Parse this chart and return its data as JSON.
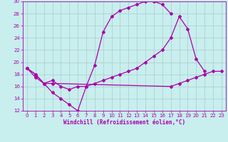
{
  "xlabel": "Windchill (Refroidissement éolien,°C)",
  "bg_color": "#c8eeee",
  "grid_color": "#aacccc",
  "line_color": "#aa00aa",
  "xlim": [
    -0.5,
    23.5
  ],
  "ylim": [
    12,
    30
  ],
  "xticks": [
    0,
    1,
    2,
    3,
    4,
    5,
    6,
    7,
    8,
    9,
    10,
    11,
    12,
    13,
    14,
    15,
    16,
    17,
    18,
    19,
    20,
    21,
    22,
    23
  ],
  "yticks": [
    12,
    14,
    16,
    18,
    20,
    22,
    24,
    26,
    28,
    30
  ],
  "line1_x": [
    0,
    1,
    2,
    3,
    4,
    5,
    6,
    7,
    8,
    9,
    10,
    11,
    12,
    13,
    14,
    15,
    16,
    17
  ],
  "line1_y": [
    19,
    18,
    16.5,
    15,
    14,
    13,
    12,
    16,
    19.5,
    25,
    27.5,
    28.5,
    29,
    29.5,
    30,
    30,
    29.5,
    28
  ],
  "line2_x": [
    0,
    1,
    2,
    3,
    4,
    5,
    6,
    7,
    8,
    9,
    10,
    11,
    12,
    13,
    14,
    15,
    16,
    17,
    18,
    19,
    20,
    21
  ],
  "line2_y": [
    19,
    18,
    16.5,
    17,
    16,
    15.5,
    16,
    16,
    16.5,
    17,
    17.5,
    18,
    18.5,
    19,
    20,
    21,
    22,
    24,
    27.5,
    25.5,
    20.5,
    18.5
  ],
  "line3_x": [
    0,
    1,
    2,
    3,
    17,
    18,
    19,
    20,
    21,
    22,
    23
  ],
  "line3_y": [
    19,
    17.5,
    16.5,
    16.5,
    16,
    16.5,
    17,
    17.5,
    18,
    18.5,
    18.5
  ]
}
